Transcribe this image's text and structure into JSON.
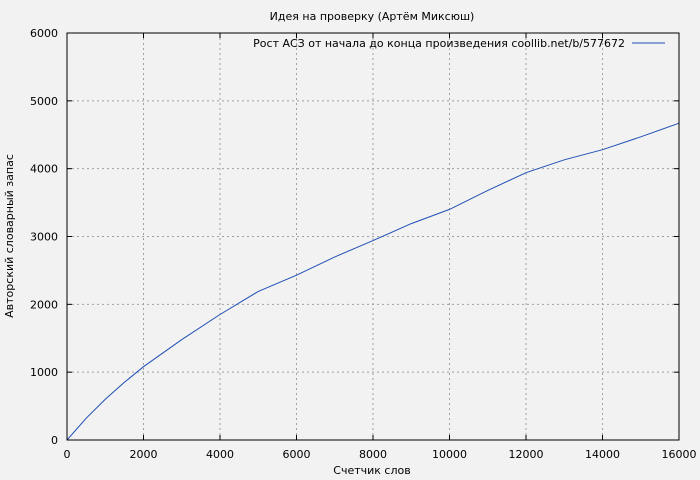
{
  "chart_data": {
    "type": "line",
    "title": "Идея на проверку (Артём Миксюш)",
    "xlabel": "Счетчик слов",
    "ylabel": "Авторский словарный запас",
    "xlim": [
      0,
      16000
    ],
    "ylim": [
      0,
      6000
    ],
    "x_ticks": [
      0,
      2000,
      4000,
      6000,
      8000,
      10000,
      12000,
      14000,
      16000
    ],
    "y_ticks": [
      0,
      1000,
      2000,
      3000,
      4000,
      5000,
      6000
    ],
    "grid": true,
    "legend_position": "top-right",
    "series": [
      {
        "name": "Рост АСЗ от начала до конца произведения coollib.net/b/577672",
        "color": "#1f4fb5",
        "x": [
          0,
          500,
          1000,
          1500,
          2000,
          3000,
          4000,
          5000,
          6000,
          7000,
          8000,
          9000,
          10000,
          11000,
          12000,
          13000,
          14000,
          15000,
          16000
        ],
        "y": [
          0,
          320,
          600,
          850,
          1080,
          1480,
          1850,
          2190,
          2430,
          2700,
          2940,
          3190,
          3400,
          3680,
          3940,
          4130,
          4280,
          4470,
          4670
        ]
      }
    ]
  }
}
